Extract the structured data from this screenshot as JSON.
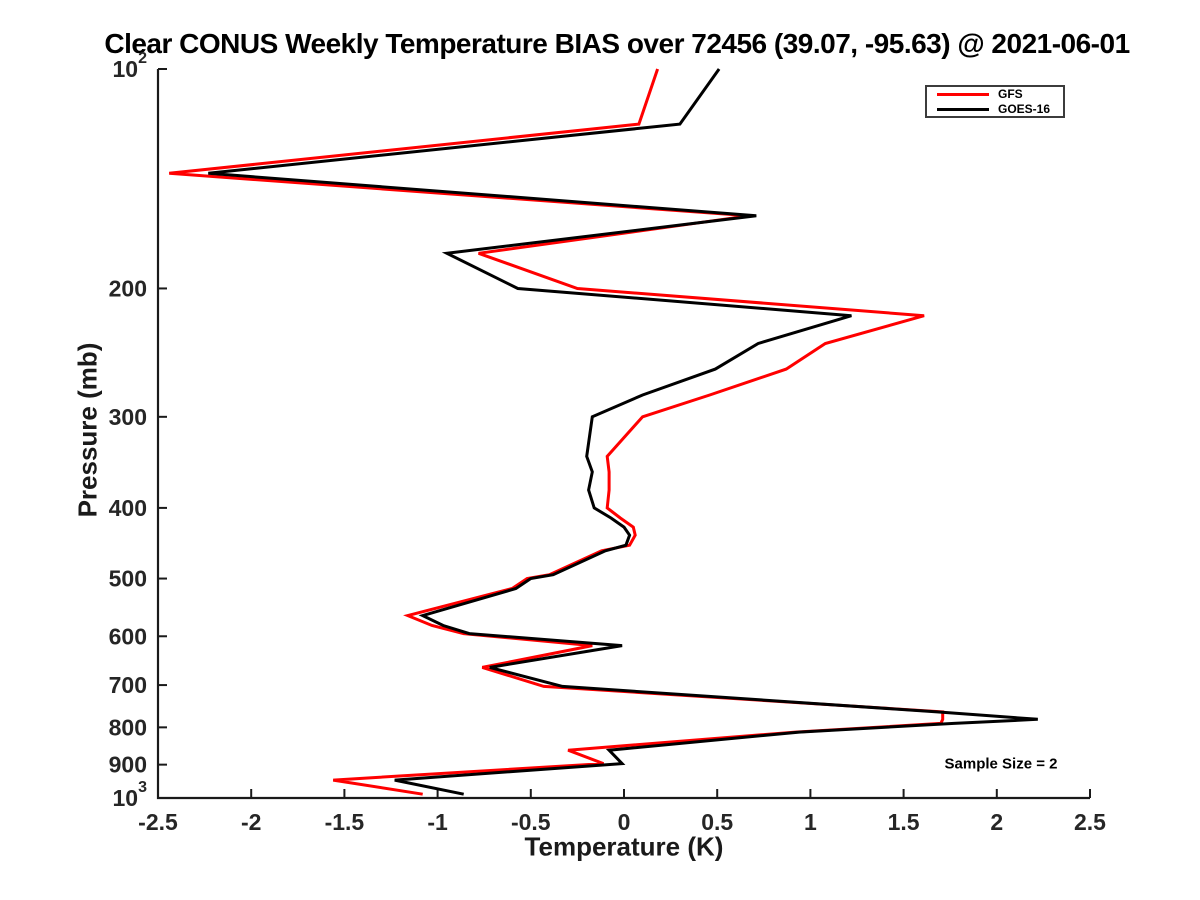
{
  "chart_data": {
    "type": "line",
    "title": "Clear CONUS Weekly Temperature BIAS over 72456 (39.07, -95.63) @ 2021-06-01",
    "xlabel": "Temperature (K)",
    "ylabel": "Pressure (mb)",
    "annotation": "Sample Size = 2",
    "xlim": [
      -2.5,
      2.5
    ],
    "ylim": [
      100,
      1000
    ],
    "yscale": "log",
    "y_axis_direction": "increasing downward",
    "grid": false,
    "legend_position": "top-right",
    "x_ticks": [
      {
        "v": -2.5,
        "label": "-2.5"
      },
      {
        "v": -2,
        "label": "-2"
      },
      {
        "v": -1.5,
        "label": "-1.5"
      },
      {
        "v": -1,
        "label": "-1"
      },
      {
        "v": -0.5,
        "label": "-0.5"
      },
      {
        "v": 0,
        "label": "0"
      },
      {
        "v": 0.5,
        "label": "0.5"
      },
      {
        "v": 1,
        "label": "1"
      },
      {
        "v": 1.5,
        "label": "1.5"
      },
      {
        "v": 2,
        "label": "2"
      },
      {
        "v": 2.5,
        "label": "2.5"
      }
    ],
    "y_ticks": [
      {
        "p": 100,
        "label": "10",
        "exp": "2"
      },
      {
        "p": 200,
        "label": "200"
      },
      {
        "p": 300,
        "label": "300"
      },
      {
        "p": 400,
        "label": "400"
      },
      {
        "p": 500,
        "label": "500"
      },
      {
        "p": 600,
        "label": "600"
      },
      {
        "p": 700,
        "label": "700"
      },
      {
        "p": 800,
        "label": "800"
      },
      {
        "p": 900,
        "label": "900"
      },
      {
        "p": 1000,
        "label": "10",
        "exp": "3"
      }
    ],
    "pressure_levels": [
      100,
      119,
      139,
      159,
      179,
      200,
      218,
      238,
      258,
      280,
      300,
      340,
      357,
      378,
      400,
      413,
      425,
      436,
      450,
      458,
      494,
      500,
      516,
      562,
      580,
      595,
      618,
      662,
      703,
      762,
      780,
      790,
      812,
      860,
      897,
      945,
      988
    ],
    "series": [
      {
        "name": "GFS",
        "color": "#ff0000",
        "values": [
          0.18,
          0.08,
          -2.44,
          0.67,
          -0.78,
          -0.25,
          1.61,
          1.08,
          0.87,
          0.46,
          0.1,
          -0.09,
          -0.08,
          -0.08,
          -0.09,
          -0.02,
          0.05,
          0.06,
          0.03,
          -0.12,
          -0.4,
          -0.52,
          -0.6,
          -1.16,
          -1.03,
          -0.86,
          -0.17,
          -0.76,
          -0.43,
          1.71,
          1.71,
          1.7,
          0.92,
          -0.3,
          -0.11,
          -1.56,
          -1.08
        ]
      },
      {
        "name": "GOES-16",
        "color": "#000000",
        "values": [
          0.51,
          0.3,
          -2.23,
          0.71,
          -0.95,
          -0.57,
          1.22,
          0.72,
          0.49,
          0.1,
          -0.17,
          -0.2,
          -0.17,
          -0.19,
          -0.16,
          -0.07,
          0.0,
          0.03,
          0.01,
          -0.1,
          -0.38,
          -0.5,
          -0.58,
          -1.08,
          -0.97,
          -0.83,
          -0.01,
          -0.72,
          -0.33,
          1.68,
          2.22,
          1.77,
          0.94,
          -0.08,
          -0.01,
          -1.23,
          -0.86
        ]
      }
    ]
  }
}
